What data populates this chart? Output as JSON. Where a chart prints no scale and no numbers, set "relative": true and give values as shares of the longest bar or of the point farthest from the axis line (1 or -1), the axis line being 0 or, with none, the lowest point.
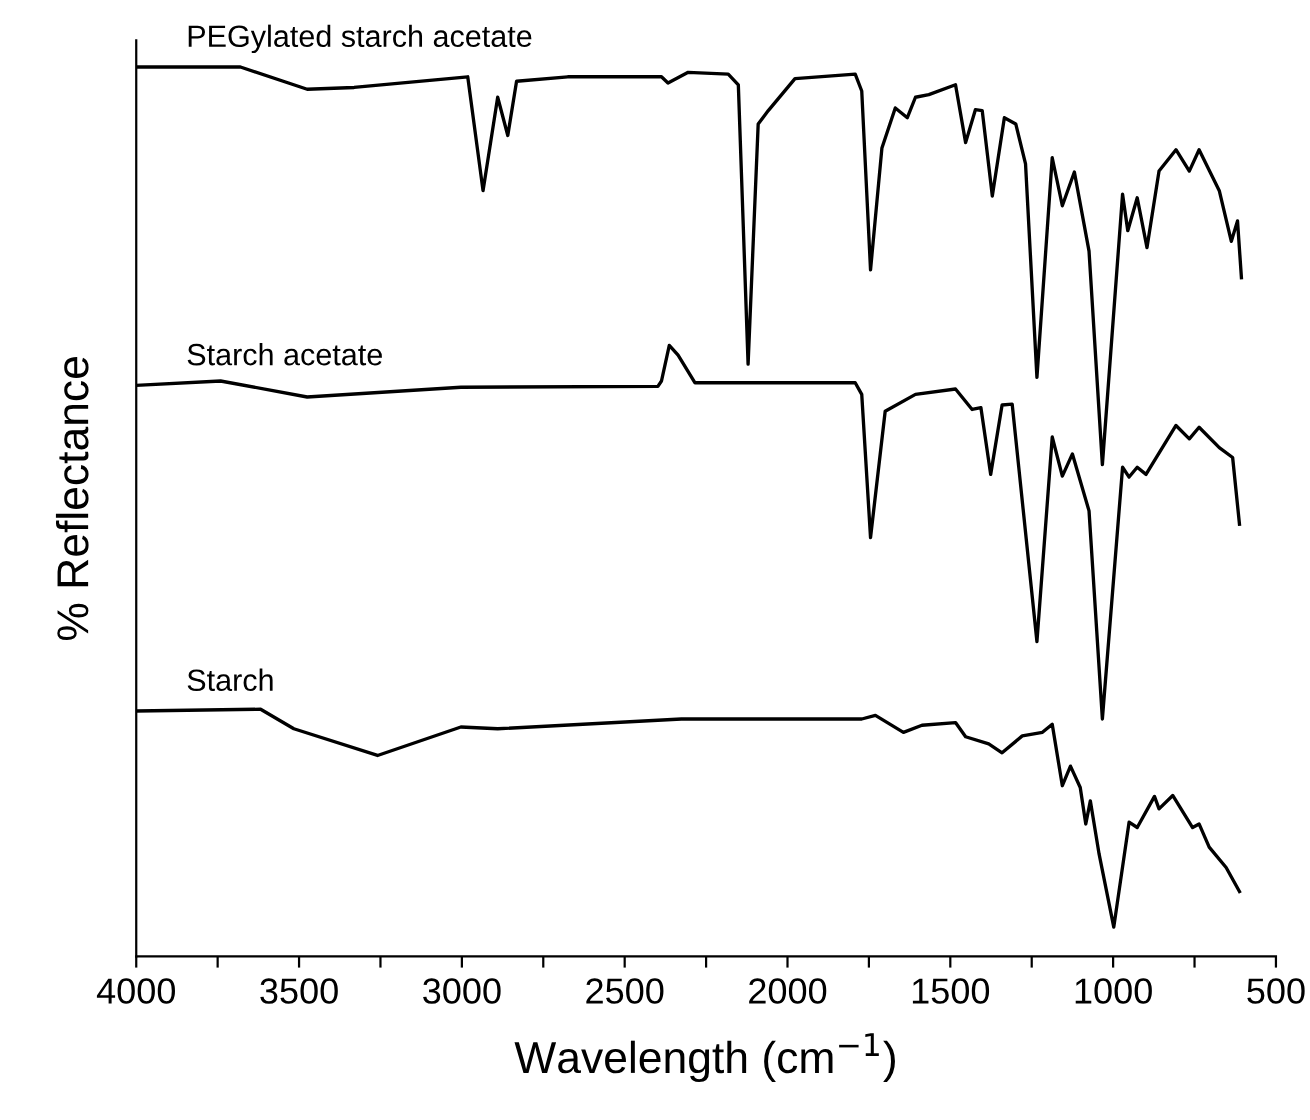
{
  "chart_data": {
    "type": "line",
    "relative": true,
    "xlabel": "Wavelength (cm$^{−1}$)",
    "ylabel": "% Reflectance",
    "xlim": [
      4000,
      500
    ],
    "xticks": [
      4000,
      {
        "value": 3750,
        "label": null
      },
      3500,
      {
        "value": 3250,
        "label": null
      },
      3000,
      {
        "value": 2750,
        "label": null
      },
      2500,
      {
        "value": 2250,
        "label": null
      },
      2000,
      {
        "value": 1750,
        "label": null
      },
      1500,
      {
        "value": 1250,
        "label": null
      },
      1000,
      {
        "value": 750,
        "label": null
      },
      500
    ],
    "legend": false,
    "grid": false,
    "marker": "none",
    "line_style": "solid",
    "series": [
      {
        "name": "PEGylated starch acetate",
        "color": "#000000",
        "x": [
          4000,
          3680,
          3475,
          3331,
          2982,
          2935,
          2890,
          2859,
          2832,
          2675,
          2387,
          2367,
          2305,
          2182,
          2151,
          2121,
          2090,
          2059,
          1977,
          1792,
          1772,
          1745,
          1710,
          1669,
          1632,
          1607,
          1566,
          1484,
          1453,
          1423,
          1402,
          1371,
          1334,
          1299,
          1269,
          1234,
          1187,
          1156,
          1119,
          1074,
          1033,
          971,
          955,
          926,
          896,
          859,
          807,
          766,
          736,
          674,
          637,
          618,
          606
        ],
        "values": [
          1.0,
          1.0,
          0.975,
          0.977,
          0.989,
          0.861,
          0.966,
          0.923,
          0.984,
          0.989,
          0.989,
          0.982,
          0.994,
          0.992,
          0.98,
          0.666,
          0.936,
          0.951,
          0.987,
          0.992,
          0.973,
          0.772,
          0.909,
          0.954,
          0.943,
          0.966,
          0.969,
          0.98,
          0.915,
          0.952,
          0.951,
          0.855,
          0.943,
          0.936,
          0.891,
          0.651,
          0.898,
          0.844,
          0.882,
          0.793,
          0.553,
          0.857,
          0.816,
          0.853,
          0.797,
          0.883,
          0.907,
          0.883,
          0.907,
          0.861,
          0.804,
          0.827,
          0.763
        ]
      },
      {
        "name": "Starch acetate",
        "color": "#000000",
        "x": [
          4000,
          3741,
          3475,
          3003,
          2398,
          2387,
          2363,
          2336,
          2284,
          1792,
          1772,
          1745,
          1700,
          1607,
          1484,
          1433,
          1406,
          1376,
          1341,
          1310,
          1234,
          1187,
          1156,
          1125,
          1074,
          1033,
          971,
          951,
          926,
          899,
          807,
          766,
          736,
          674,
          633,
          612
        ],
        "values": [
          0.642,
          0.647,
          0.629,
          0.64,
          0.641,
          0.647,
          0.687,
          0.676,
          0.645,
          0.645,
          0.632,
          0.471,
          0.613,
          0.632,
          0.638,
          0.615,
          0.617,
          0.542,
          0.62,
          0.621,
          0.354,
          0.584,
          0.54,
          0.565,
          0.501,
          0.267,
          0.55,
          0.539,
          0.55,
          0.542,
          0.597,
          0.582,
          0.595,
          0.572,
          0.561,
          0.486
        ]
      },
      {
        "name": "Starch",
        "color": "#000000",
        "x": [
          4000,
          3618,
          3516,
          3259,
          3003,
          2890,
          2326,
          1772,
          1730,
          1644,
          1587,
          1484,
          1453,
          1382,
          1341,
          1279,
          1217,
          1187,
          1156,
          1131,
          1101,
          1084,
          1070,
          1043,
          998,
          951,
          926,
          873,
          859,
          817,
          756,
          736,
          705,
          653,
          612
        ],
        "values": [
          0.276,
          0.278,
          0.256,
          0.226,
          0.258,
          0.256,
          0.267,
          0.267,
          0.271,
          0.252,
          0.26,
          0.263,
          0.247,
          0.239,
          0.229,
          0.248,
          0.252,
          0.261,
          0.192,
          0.214,
          0.19,
          0.149,
          0.175,
          0.115,
          0.033,
          0.151,
          0.145,
          0.18,
          0.166,
          0.181,
          0.145,
          0.149,
          0.123,
          0.1,
          0.073
        ]
      }
    ]
  }
}
